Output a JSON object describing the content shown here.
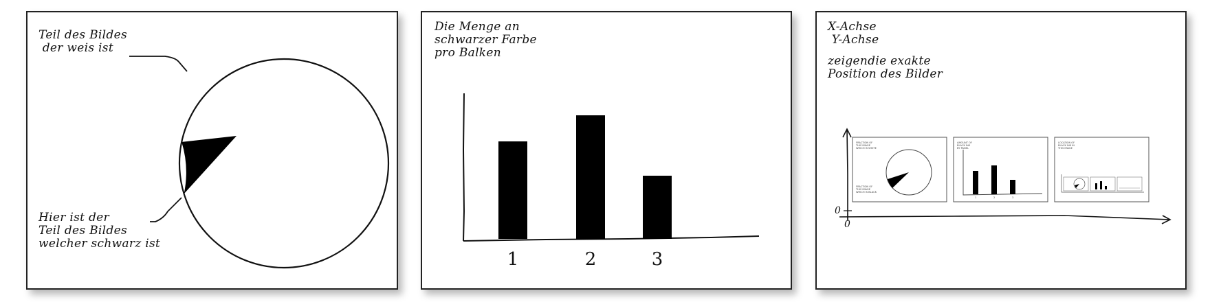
{
  "panels": [
    {
      "chart_data": {
        "type": "pie",
        "slices": [
          {
            "label": "Teil des Bildes der weis ist",
            "value": 0.92,
            "color": "#ffffff"
          },
          {
            "label": "Hier ist der Teil des Bildes welcher schwarz ist",
            "value": 0.08,
            "color": "#000000"
          }
        ]
      },
      "annotations": {
        "white": "Teil des Bildes\n der weis ist",
        "black": "Hier ist der\nTeil des Bildes\nwelcher schwarz ist"
      }
    },
    {
      "chart_data": {
        "type": "bar",
        "title": "Die Menge an\nschwarzer Farbe\npro Balken",
        "categories": [
          "1",
          "2",
          "3"
        ],
        "values": [
          71,
          90,
          46
        ],
        "ylim": [
          0,
          105
        ],
        "bar_color": "#000000"
      }
    },
    {
      "chart_data": {
        "type": "scatter",
        "title": "X-Achse\n Y-Achse",
        "subtitle": "zeigendie exakte\nPosition des Bilder",
        "x_origin_label": "0",
        "y_origin_label": "0"
      },
      "mini_texts": {
        "pie_white": "FRACTION OF\nTHIS IMAGE\nWHICH IS WHITE",
        "pie_black": "FRACTION OF\nTHIS IMAGE\nWHICH IS BLACK",
        "bar_title": "AMOUNT OF\nBLACK INK\nBY PANEL",
        "bar_ticks": [
          "1",
          "2",
          "3"
        ],
        "pos_title": "LOCATION OF\nBLACK INK IN\nTHIS IMAGE"
      }
    }
  ]
}
